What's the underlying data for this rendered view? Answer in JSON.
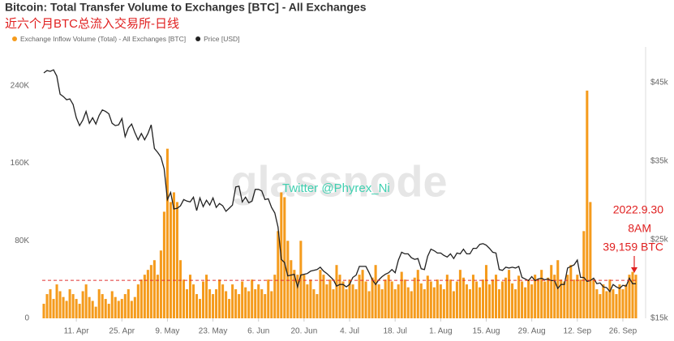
{
  "chart_data": {
    "type": "bar-line",
    "title": "Bitcoin: Total Transfer Volume to Exchanges [BTC] - All Exchanges",
    "subtitle": "近六个月BTC总流入交易所-日线",
    "watermark": "glassnode",
    "credit": "Twitter @Phyrex_Ni",
    "annotation": [
      "2022.9.30",
      "8AM",
      "39,159 BTC"
    ],
    "reference_line": {
      "value": 39159,
      "color": "#e03030"
    },
    "categories": [
      null,
      null,
      null,
      null,
      null,
      null,
      null,
      null,
      null,
      null,
      "11. Apr",
      null,
      null,
      null,
      null,
      null,
      null,
      null,
      null,
      null,
      null,
      null,
      null,
      null,
      "25. Apr",
      null,
      null,
      null,
      null,
      null,
      null,
      null,
      null,
      null,
      null,
      null,
      null,
      null,
      "9. May",
      null,
      null,
      null,
      null,
      null,
      null,
      null,
      null,
      null,
      null,
      null,
      null,
      null,
      "23. May",
      null,
      null,
      null,
      null,
      null,
      null,
      null,
      null,
      null,
      null,
      null,
      null,
      null,
      "6. Jun",
      null,
      null,
      null,
      null,
      null,
      null,
      null,
      null,
      null,
      null,
      null,
      null,
      null,
      "20. Jun",
      null,
      null,
      null,
      null,
      null,
      null,
      null,
      null,
      null,
      null,
      null,
      null,
      null,
      "4. Jul",
      null,
      null,
      null,
      null,
      null,
      null,
      null,
      null,
      null,
      null,
      null,
      null,
      null,
      "18. Jul",
      null,
      null,
      null,
      null,
      null,
      null,
      null,
      null,
      null,
      null,
      null,
      null,
      null,
      "1. Aug",
      null,
      null,
      null,
      null,
      null,
      null,
      null,
      null,
      null,
      null,
      null,
      null,
      null,
      "15. Aug",
      null,
      null,
      null,
      null,
      null,
      null,
      null,
      null,
      null,
      null,
      null,
      null,
      null,
      "29. Aug",
      null,
      null,
      null,
      null,
      null,
      null,
      null,
      null,
      null,
      null,
      null,
      null,
      null,
      "12. Sep",
      null,
      null,
      null,
      null,
      null,
      null,
      null,
      null,
      null,
      null,
      null,
      null,
      null,
      "26. Sep",
      null,
      null,
      null,
      null
    ],
    "series": [
      {
        "name": "Exchange Inflow Volume (Total) - All Exchanges [BTC]",
        "color": "#f59b1c",
        "type": "bar",
        "values": [
          15000,
          25000,
          30000,
          20000,
          35000,
          28000,
          22000,
          18000,
          30000,
          25000,
          20000,
          15000,
          28000,
          35000,
          22000,
          18000,
          12000,
          30000,
          25000,
          20000,
          15000,
          28000,
          22000,
          18000,
          20000,
          25000,
          30000,
          18000,
          22000,
          35000,
          40000,
          45000,
          50000,
          55000,
          60000,
          45000,
          70000,
          110000,
          175000,
          120000,
          130000,
          120000,
          60000,
          40000,
          30000,
          45000,
          35000,
          25000,
          20000,
          38000,
          45000,
          30000,
          25000,
          30000,
          40000,
          35000,
          28000,
          20000,
          35000,
          30000,
          25000,
          38000,
          32000,
          28000,
          40000,
          30000,
          35000,
          30000,
          25000,
          40000,
          28000,
          45000,
          90000,
          130000,
          125000,
          80000,
          60000,
          50000,
          45000,
          80000,
          45000,
          35000,
          40000,
          30000,
          25000,
          50000,
          45000,
          35000,
          40000,
          30000,
          55000,
          45000,
          38000,
          30000,
          40000,
          35000,
          30000,
          45000,
          50000,
          38000,
          28000,
          42000,
          55000,
          35000,
          30000,
          40000,
          45000,
          38000,
          30000,
          35000,
          48000,
          40000,
          32000,
          28000,
          42000,
          50000,
          36000,
          30000,
          44000,
          38000,
          32000,
          40000,
          35000,
          30000,
          45000,
          40000,
          28000,
          38000,
          50000,
          42000,
          35000,
          30000,
          45000,
          38000,
          32000,
          40000,
          55000,
          35000,
          40000,
          45000,
          30000,
          38000,
          42000,
          50000,
          36000,
          30000,
          44000,
          38000,
          32000,
          40000,
          35000,
          45000,
          40000,
          50000,
          38000,
          42000,
          55000,
          45000,
          60000,
          40000,
          38000,
          45000,
          55000,
          40000,
          45000,
          40000,
          90000,
          235000,
          120000,
          40000,
          30000,
          25000,
          35000,
          28000,
          40000,
          30000,
          25000,
          35000,
          30000,
          35000,
          45000,
          48000,
          45000
        ]
      },
      {
        "name": "Price [USD]",
        "color": "#222222",
        "type": "line",
        "axis": "y2",
        "values": [
          46200,
          46500,
          46400,
          46600,
          45800,
          43500,
          43200,
          42800,
          42900,
          42200,
          40500,
          39500,
          40200,
          41300,
          39800,
          40500,
          39700,
          40800,
          41500,
          41300,
          41000,
          39800,
          39500,
          39600,
          40400,
          38100,
          39200,
          39700,
          38600,
          37700,
          38500,
          37700,
          38500,
          39600,
          36600,
          36100,
          35500,
          34000,
          30100,
          31000,
          28900,
          29000,
          29300,
          30100,
          29900,
          29800,
          30400,
          28700,
          30300,
          29200,
          30000,
          29400,
          30300,
          29100,
          29600,
          29300,
          28600,
          29000,
          29400,
          31700,
          31800,
          29800,
          30400,
          29700,
          29900,
          31400,
          31400,
          31200,
          30100,
          30200,
          29100,
          28400,
          26600,
          22500,
          22100,
          20400,
          20500,
          20600,
          19000,
          20500,
          20600,
          20700,
          21000,
          21100,
          21200,
          21500,
          21000,
          20700,
          20300,
          19900,
          19100,
          19300,
          19300,
          19000,
          19300,
          20200,
          20500,
          21600,
          21600,
          21600,
          20800,
          19900,
          19300,
          19900,
          20300,
          20600,
          20800,
          21200,
          20800,
          22400,
          23400,
          23200,
          23200,
          22700,
          22500,
          22600,
          21300,
          21200,
          22900,
          23800,
          23600,
          23300,
          23300,
          23000,
          22800,
          23200,
          22600,
          23300,
          23200,
          23800,
          23200,
          23200,
          23900,
          23900,
          24400,
          24500,
          24300,
          23900,
          23400,
          23300,
          21200,
          21100,
          21500,
          21400,
          21500,
          21400,
          21600,
          20200,
          20000,
          19800,
          20300,
          19800,
          20000,
          20100,
          19900,
          20000,
          19800,
          19800,
          18800,
          19300,
          19300,
          21400,
          21600,
          21800,
          22400,
          20200,
          20200,
          19700,
          19800,
          20100,
          19400,
          19500,
          19000,
          18900,
          18400,
          19300,
          19000,
          18800,
          19200,
          19100,
          20100,
          19400,
          19400
        ]
      }
    ],
    "ylim": [
      0,
      280000
    ],
    "yticks": [
      0,
      {
        "value": 80000,
        "label": "80K"
      },
      {
        "value": 160000,
        "label": "160K"
      },
      {
        "value": 240000,
        "label": "240K"
      }
    ],
    "y2lim": [
      15000,
      49500
    ],
    "y2ticks": [
      {
        "value": 15000,
        "label": "$15k"
      },
      {
        "value": 25000,
        "label": "$25k"
      },
      {
        "value": 35000,
        "label": "$35k"
      },
      {
        "value": 45000,
        "label": "$45k"
      }
    ],
    "grid": false,
    "legend": "top-left"
  }
}
